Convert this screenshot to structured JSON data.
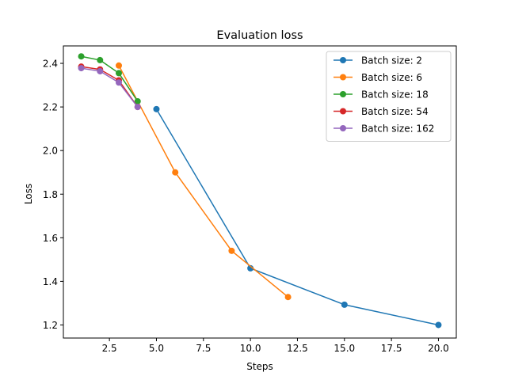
{
  "chart_data": {
    "type": "line",
    "title": "Evaluation loss",
    "xlabel": "Steps",
    "ylabel": "Loss",
    "xlim": [
      0.05,
      20.95
    ],
    "ylim": [
      1.14,
      2.48
    ],
    "xticks": [
      2.5,
      5.0,
      7.5,
      10.0,
      12.5,
      15.0,
      17.5,
      20.0
    ],
    "xtick_labels": [
      "2.5",
      "5.0",
      "7.5",
      "10.0",
      "12.5",
      "15.0",
      "17.5",
      "20.0"
    ],
    "yticks": [
      1.2,
      1.4,
      1.6,
      1.8,
      2.0,
      2.2,
      2.4
    ],
    "ytick_labels": [
      "1.2",
      "1.4",
      "1.6",
      "1.8",
      "2.0",
      "2.2",
      "2.4"
    ],
    "grid": false,
    "legend_position": "top-right",
    "series": [
      {
        "name": "Batch size: 2",
        "color": "#1f77b4",
        "x": [
          5,
          10,
          15,
          20
        ],
        "y": [
          2.19,
          1.46,
          1.293,
          1.2
        ]
      },
      {
        "name": "Batch size: 6",
        "color": "#ff7f0e",
        "x": [
          3,
          6,
          9,
          12
        ],
        "y": [
          2.39,
          1.9,
          1.54,
          1.328
        ]
      },
      {
        "name": "Batch size: 18",
        "color": "#2ca02c",
        "x": [
          1,
          2,
          3,
          4
        ],
        "y": [
          2.432,
          2.415,
          2.355,
          2.226
        ]
      },
      {
        "name": "Batch size: 54",
        "color": "#d62728",
        "x": [
          1,
          2,
          3,
          4
        ],
        "y": [
          2.385,
          2.372,
          2.322,
          2.2
        ]
      },
      {
        "name": "Batch size: 162",
        "color": "#9467bd",
        "x": [
          1,
          2,
          3,
          4
        ],
        "y": [
          2.378,
          2.364,
          2.312,
          2.2
        ]
      }
    ]
  }
}
